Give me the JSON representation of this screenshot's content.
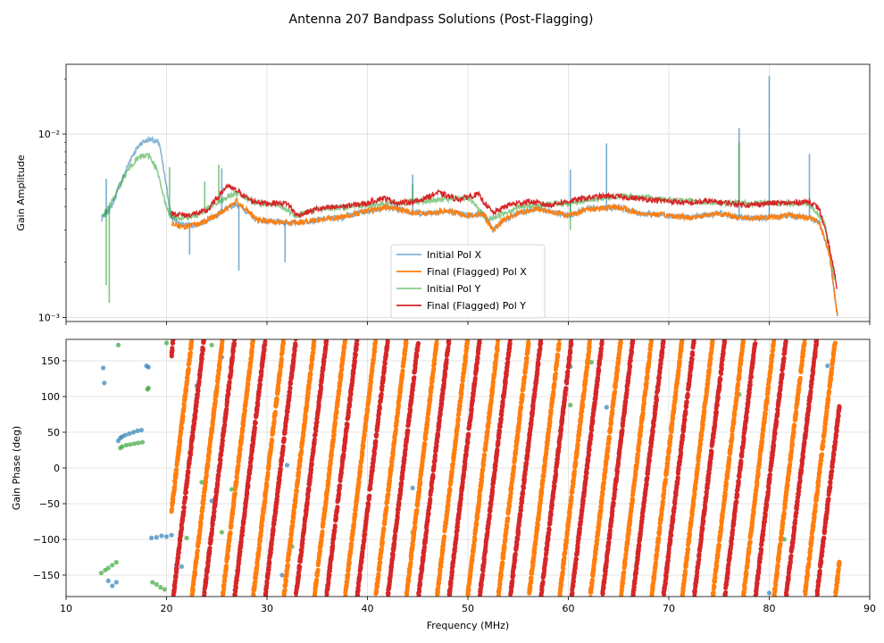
{
  "figure": {
    "title": "Antenna 207 Bandpass Solutions (Post-Flagging)"
  },
  "chart_data": [
    {
      "type": "line",
      "panel": "top",
      "title": "Antenna 207 Bandpass Solutions (Post-Flagging)",
      "xlabel": "",
      "ylabel": "Gain Amplitude",
      "yscale": "log",
      "xlim": [
        10,
        90
      ],
      "ylim": [
        0.00095,
        0.024
      ],
      "ytick_values": [
        0.001,
        0.01
      ],
      "ytick_labels": [
        "10⁻³",
        "10⁻²"
      ],
      "xtick_values": [
        10,
        20,
        30,
        40,
        50,
        60,
        70,
        80,
        90
      ],
      "grid": true,
      "legend_position": "lower-center",
      "series": [
        {
          "name": "Initial Pol X",
          "color": "#1f77b4",
          "x": [
            13.5,
            14.5,
            15.5,
            16.5,
            17.5,
            18.5,
            19.3,
            19.9,
            20.5,
            21.5,
            23,
            25,
            27,
            29,
            31,
            33,
            35,
            37,
            40,
            42,
            45,
            48,
            50,
            51.5,
            52.5,
            53.5,
            55,
            57,
            60,
            62,
            65,
            67,
            70,
            72,
            75,
            77,
            80,
            82,
            84,
            85,
            86,
            86.8
          ],
          "y": [
            0.0034,
            0.004,
            0.0055,
            0.0075,
            0.009,
            0.0094,
            0.0088,
            0.0055,
            0.0035,
            0.0032,
            0.0032,
            0.0036,
            0.0042,
            0.0034,
            0.0033,
            0.0033,
            0.0034,
            0.0035,
            0.0038,
            0.004,
            0.0037,
            0.0038,
            0.0036,
            0.0037,
            0.003,
            0.0034,
            0.0037,
            0.0039,
            0.0036,
            0.0039,
            0.004,
            0.0037,
            0.0036,
            0.0035,
            0.0037,
            0.0035,
            0.0035,
            0.0036,
            0.0035,
            0.0033,
            0.0022,
            0.001
          ]
        },
        {
          "name": "Final (Flagged) Pol X",
          "color": "#ff7f0e",
          "x": [
            20.5,
            21.5,
            23,
            25,
            27,
            29,
            31,
            33,
            35,
            37,
            40,
            42,
            45,
            48,
            50,
            51.5,
            52.5,
            53.5,
            55,
            57,
            60,
            62,
            65,
            67,
            70,
            72,
            75,
            77,
            80,
            82,
            84,
            85,
            86,
            86.8
          ],
          "y": [
            0.0033,
            0.0031,
            0.0032,
            0.0036,
            0.0043,
            0.0034,
            0.0033,
            0.0033,
            0.0034,
            0.0035,
            0.0038,
            0.004,
            0.0037,
            0.0038,
            0.0036,
            0.0037,
            0.003,
            0.0034,
            0.0037,
            0.0039,
            0.0036,
            0.0039,
            0.004,
            0.0037,
            0.0036,
            0.0035,
            0.0037,
            0.0035,
            0.0035,
            0.0036,
            0.0035,
            0.0033,
            0.0022,
            0.001
          ]
        },
        {
          "name": "Initial Pol Y",
          "color": "#2ca02c",
          "x": [
            13.5,
            14.5,
            15.5,
            16.5,
            17.5,
            18.3,
            19.0,
            19.6,
            20.3,
            21.5,
            23,
            25,
            27,
            29,
            31,
            33,
            35,
            40,
            45,
            50,
            52,
            55,
            60,
            65,
            70,
            75,
            80,
            84,
            85.5,
            86.5
          ],
          "y": [
            0.0035,
            0.0042,
            0.0055,
            0.0068,
            0.0076,
            0.0076,
            0.0065,
            0.0048,
            0.0036,
            0.0035,
            0.0036,
            0.0042,
            0.0048,
            0.0042,
            0.0041,
            0.0036,
            0.0039,
            0.0041,
            0.0043,
            0.0045,
            0.0034,
            0.004,
            0.0042,
            0.0046,
            0.0044,
            0.0042,
            0.0042,
            0.0042,
            0.0033,
            0.0016
          ]
        },
        {
          "name": "Final (Flagged) Pol Y",
          "color": "#d62728",
          "x": [
            20.5,
            22,
            24,
            26,
            27,
            28.5,
            30,
            32,
            33,
            35,
            37,
            40,
            41.5,
            43,
            45,
            47,
            49,
            51,
            52.5,
            54,
            56,
            58,
            60,
            62,
            64,
            66,
            68,
            70,
            72,
            74,
            76,
            78,
            80,
            82,
            84,
            85,
            86,
            86.8
          ],
          "y": [
            0.0037,
            0.0036,
            0.0038,
            0.0052,
            0.0049,
            0.0043,
            0.0042,
            0.0042,
            0.0036,
            0.0039,
            0.004,
            0.0042,
            0.0045,
            0.0042,
            0.0043,
            0.0048,
            0.0044,
            0.0047,
            0.0037,
            0.0041,
            0.0043,
            0.0041,
            0.0043,
            0.0045,
            0.0046,
            0.0045,
            0.0044,
            0.0043,
            0.0042,
            0.0043,
            0.0042,
            0.0041,
            0.0042,
            0.0042,
            0.0043,
            0.0039,
            0.0024,
            0.0014
          ]
        }
      ],
      "spikes": [
        {
          "series": "Initial Pol X",
          "x": 14.0,
          "y": 0.0057
        },
        {
          "series": "Initial Pol X",
          "x": 22.3,
          "y": 0.0022
        },
        {
          "series": "Initial Pol X",
          "x": 25.5,
          "y": 0.0065
        },
        {
          "series": "Initial Pol X",
          "x": 27.2,
          "y": 0.0018
        },
        {
          "series": "Initial Pol X",
          "x": 31.8,
          "y": 0.002
        },
        {
          "series": "Initial Pol X",
          "x": 44.5,
          "y": 0.006
        },
        {
          "series": "Initial Pol X",
          "x": 60.2,
          "y": 0.0064
        },
        {
          "series": "Initial Pol X",
          "x": 63.8,
          "y": 0.0089
        },
        {
          "series": "Initial Pol X",
          "x": 77.0,
          "y": 0.0108
        },
        {
          "series": "Initial Pol X",
          "x": 80.0,
          "y": 0.0207
        },
        {
          "series": "Initial Pol X",
          "x": 84.0,
          "y": 0.0078
        },
        {
          "series": "Initial Pol Y",
          "x": 14.0,
          "y": 0.0015
        },
        {
          "series": "Initial Pol Y",
          "x": 14.3,
          "y": 0.0012
        },
        {
          "series": "Initial Pol Y",
          "x": 20.3,
          "y": 0.0066
        },
        {
          "series": "Initial Pol Y",
          "x": 23.8,
          "y": 0.0055
        },
        {
          "series": "Initial Pol Y",
          "x": 25.2,
          "y": 0.0068
        },
        {
          "series": "Initial Pol Y",
          "x": 44.5,
          "y": 0.0053
        },
        {
          "series": "Initial Pol Y",
          "x": 60.2,
          "y": 0.003
        },
        {
          "series": "Initial Pol Y",
          "x": 77.0,
          "y": 0.009
        }
      ]
    },
    {
      "type": "scatter",
      "panel": "bottom",
      "xlabel": "Frequency (MHz)",
      "ylabel": "Gain Phase (deg)",
      "xlim": [
        10,
        90
      ],
      "ylim": [
        -180,
        180
      ],
      "xtick_values": [
        10,
        20,
        30,
        40,
        50,
        60,
        70,
        80,
        90
      ],
      "xtick_labels": [
        "10",
        "20",
        "30",
        "40",
        "50",
        "60",
        "70",
        "80",
        "90"
      ],
      "ytick_values": [
        -150,
        -100,
        -50,
        0,
        50,
        100,
        150
      ],
      "ytick_labels": [
        "−150",
        "−100",
        "−50",
        "0",
        "50",
        "100",
        "150"
      ],
      "grid": true,
      "phase_wrap_model": {
        "Final (Flagged) Pol X": {
          "x_start": 20.5,
          "x_end": 87.0,
          "x_first_wrap": 21.0,
          "wrap_period_mhz": 3.05,
          "color": "#ff7f0e"
        },
        "Final (Flagged) Pol Y": {
          "x_start": 20.5,
          "x_end": 87.0,
          "x_first_wrap": 22.2,
          "wrap_period_mhz": 3.05,
          "color": "#d62728"
        }
      },
      "series": [
        {
          "name": "Initial Pol X",
          "color": "#1f77b4",
          "x": [
            13.7,
            13.8,
            14.2,
            14.6,
            15.0,
            15.2,
            15.4,
            15.6,
            15.9,
            16.3,
            16.7,
            17.1,
            17.5,
            18.0,
            18.2,
            18.5,
            19.0,
            19.5,
            20.0,
            20.5,
            21.0,
            21.5,
            23.0,
            24.5,
            25.5,
            26.5,
            31.5,
            32.0,
            44.5,
            60.2,
            63.8,
            80.0,
            85.8
          ],
          "y": [
            140,
            119,
            -158,
            -165,
            -160,
            38,
            42,
            44,
            46,
            48,
            50,
            52,
            53,
            143,
            141,
            -98,
            -97,
            -95,
            -96,
            -94,
            -135,
            -138,
            115,
            -46,
            155,
            152,
            -150,
            4,
            -28,
            142,
            85,
            -175,
            143
          ]
        },
        {
          "name": "Initial Pol Y",
          "color": "#2ca02c",
          "x": [
            13.5,
            13.9,
            14.2,
            14.6,
            15.0,
            15.2,
            15.4,
            15.6,
            16.0,
            16.4,
            16.8,
            17.2,
            17.6,
            18.1,
            18.2,
            18.6,
            19.0,
            19.4,
            19.8,
            20.0,
            22.0,
            23.5,
            24.5,
            25.5,
            26.5,
            27.3,
            32.5,
            44.5,
            60.2,
            62.3,
            77.0,
            81.5
          ],
          "y": [
            -147,
            -143,
            -140,
            -136,
            -132,
            172,
            28,
            30,
            32,
            33,
            34,
            35,
            36,
            110,
            112,
            -160,
            -163,
            -167,
            -170,
            175,
            -98,
            -20,
            172,
            -90,
            -30,
            25,
            -110,
            -90,
            88,
            148,
            103,
            -100
          ]
        }
      ]
    }
  ]
}
